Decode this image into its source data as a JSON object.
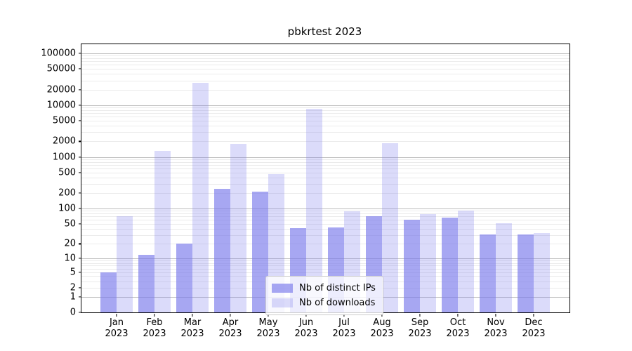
{
  "chart_data": {
    "type": "bar",
    "title": "pbkrtest 2023",
    "x_categories": [
      "Jan",
      "Feb",
      "Mar",
      "Apr",
      "May",
      "Jun",
      "Jul",
      "Aug",
      "Sep",
      "Oct",
      "Nov",
      "Dec"
    ],
    "x_year_sublabel": "2023",
    "series": [
      {
        "name": "Nb of distinct IPs",
        "color": "rgba(122,122,236,0.66)",
        "values": [
          5,
          12,
          20,
          240,
          214,
          41,
          43,
          71,
          60,
          67,
          31,
          31
        ]
      },
      {
        "name": "Nb of downloads",
        "color": "rgba(122,122,236,0.27)",
        "values": [
          70,
          1310,
          27000,
          1790,
          470,
          8500,
          89,
          1850,
          78,
          90,
          52,
          33
        ]
      }
    ],
    "y_scale": "log10(1+v)",
    "y_ticks": [
      0,
      1,
      2,
      5,
      10,
      20,
      50,
      100,
      200,
      500,
      1000,
      2000,
      5000,
      10000,
      20000,
      50000,
      100000
    ],
    "y_major_gridlines": [
      1,
      10,
      100,
      1000,
      10000,
      100000
    ],
    "ylim": [
      0,
      150000
    ],
    "grid": true,
    "legend_position": "lower center"
  },
  "colors": {
    "bar_base": "#7a7aec",
    "axis": "#000000",
    "grid_major": "#bdbdbd",
    "grid_minor": "#ebebeb",
    "background": "#ffffff"
  }
}
